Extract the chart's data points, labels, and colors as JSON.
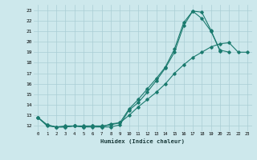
{
  "xlabel": "Humidex (Indice chaleur)",
  "xlim": [
    -0.5,
    23.5
  ],
  "ylim": [
    11.5,
    23.5
  ],
  "yticks": [
    12,
    13,
    14,
    15,
    16,
    17,
    18,
    19,
    20,
    21,
    22,
    23
  ],
  "xticks": [
    0,
    1,
    2,
    3,
    4,
    5,
    6,
    7,
    8,
    9,
    10,
    11,
    12,
    13,
    14,
    15,
    16,
    17,
    18,
    19,
    20,
    21,
    22,
    23
  ],
  "bg_color": "#cde8ec",
  "line_color": "#1a7a6e",
  "grid_color": "#aacdd4",
  "line1_x": [
    0,
    1,
    2,
    3,
    4,
    5,
    6,
    7,
    8,
    9,
    10,
    11,
    12,
    13,
    14,
    15,
    16,
    17,
    18,
    19,
    20,
    21
  ],
  "line1_y": [
    12.8,
    12.0,
    11.9,
    11.9,
    12.0,
    11.9,
    11.9,
    11.9,
    12.2,
    12.3,
    13.6,
    14.5,
    15.5,
    16.5,
    17.6,
    19.3,
    21.8,
    22.9,
    22.2,
    21.0,
    19.2,
    19.0
  ],
  "line2_x": [
    0,
    1,
    2,
    3,
    4,
    5,
    6,
    7,
    8,
    9,
    10,
    11,
    12,
    13,
    14,
    15,
    16,
    17,
    18,
    19,
    20
  ],
  "line2_y": [
    12.8,
    12.1,
    11.9,
    11.9,
    12.0,
    11.9,
    12.0,
    11.9,
    11.9,
    12.1,
    13.5,
    14.2,
    15.2,
    16.3,
    17.5,
    19.0,
    21.5,
    22.9,
    22.8,
    21.1,
    19.1
  ],
  "line3_x": [
    0,
    1,
    2,
    3,
    4,
    5,
    6,
    7,
    8,
    9,
    10,
    11,
    12,
    13,
    14,
    15,
    16,
    17,
    18,
    19,
    20,
    21,
    22,
    23
  ],
  "line3_y": [
    12.8,
    12.1,
    11.9,
    12.0,
    12.0,
    12.0,
    12.0,
    12.0,
    12.1,
    12.3,
    13.0,
    13.8,
    14.5,
    15.2,
    16.0,
    17.0,
    17.8,
    18.5,
    19.0,
    19.5,
    19.8,
    19.9,
    19.0,
    19.0
  ]
}
